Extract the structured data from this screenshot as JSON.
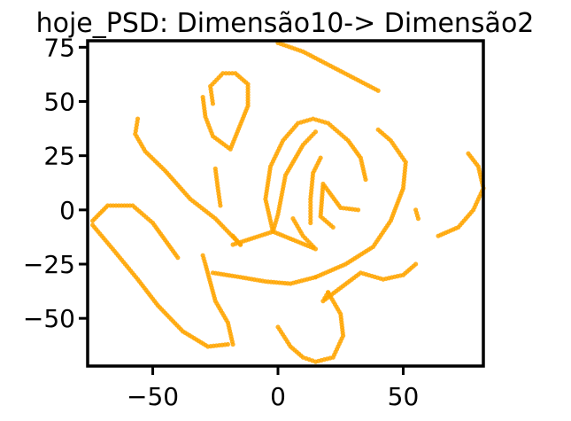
{
  "chart_data": {
    "type": "scatter",
    "title": "hoje_PSD: Dimensão10-> Dimensão2",
    "xlabel": "",
    "ylabel": "",
    "xlim": [
      -76,
      82
    ],
    "ylim": [
      -72,
      78
    ],
    "x_ticks": [
      {
        "value": -50,
        "label": "−50"
      },
      {
        "value": 0,
        "label": "0"
      },
      {
        "value": 50,
        "label": "50"
      }
    ],
    "y_ticks": [
      {
        "value": 75,
        "label": "75"
      },
      {
        "value": 50,
        "label": "50"
      },
      {
        "value": 25,
        "label": "25"
      },
      {
        "value": 0,
        "label": "0"
      },
      {
        "value": -25,
        "label": "−25"
      },
      {
        "value": -50,
        "label": "−50"
      }
    ],
    "grid": false,
    "marker_color": "#FFA500",
    "series": [
      {
        "points": [
          [
            0,
            77
          ],
          [
            10,
            73
          ],
          [
            20,
            67
          ],
          [
            30,
            61
          ],
          [
            40,
            55
          ],
          [
            -26,
            49
          ],
          [
            -27,
            57
          ],
          [
            -22,
            63
          ],
          [
            -17,
            63
          ],
          [
            -12,
            58
          ],
          [
            -12,
            48
          ],
          [
            -19,
            28
          ],
          [
            -26,
            34
          ],
          [
            -29,
            43
          ],
          [
            -30,
            52
          ],
          [
            -56,
            42
          ],
          [
            -57,
            35
          ],
          [
            -53,
            27
          ],
          [
            -45,
            18
          ],
          [
            -35,
            5
          ],
          [
            -25,
            -4
          ],
          [
            -15,
            -16
          ],
          [
            -25,
            19
          ],
          [
            -24,
            10
          ],
          [
            -23,
            2
          ],
          [
            -74,
            -5
          ],
          [
            -68,
            2
          ],
          [
            -58,
            2
          ],
          [
            -50,
            -6
          ],
          [
            -45,
            -14
          ],
          [
            -40,
            -22
          ],
          [
            -74,
            -7
          ],
          [
            -66,
            -18
          ],
          [
            -56,
            -32
          ],
          [
            -48,
            -44
          ],
          [
            -38,
            -56
          ],
          [
            -28,
            -63
          ],
          [
            -20,
            -62
          ],
          [
            -30,
            -21
          ],
          [
            -29,
            -25
          ],
          [
            -25,
            -42
          ],
          [
            -20,
            -52
          ],
          [
            -18,
            -62
          ],
          [
            -18,
            -16
          ],
          [
            -2,
            -10
          ],
          [
            -5,
            5
          ],
          [
            -3,
            20
          ],
          [
            2,
            32
          ],
          [
            8,
            40
          ],
          [
            14,
            42
          ],
          [
            20,
            40
          ],
          [
            28,
            32
          ],
          [
            33,
            24
          ],
          [
            35,
            14
          ],
          [
            6,
            -4
          ],
          [
            10,
            -12
          ],
          [
            15,
            -18
          ],
          [
            -2,
            -10
          ],
          [
            0,
            -2
          ],
          [
            3,
            16
          ],
          [
            10,
            30
          ],
          [
            15,
            36
          ],
          [
            13,
            -6
          ],
          [
            13,
            5
          ],
          [
            14,
            17
          ],
          [
            17,
            24
          ],
          [
            22,
            -8
          ],
          [
            17,
            -3
          ],
          [
            18,
            12
          ],
          [
            25,
            1
          ],
          [
            32,
            0
          ],
          [
            -26,
            -29
          ],
          [
            -15,
            -31
          ],
          [
            -5,
            -33
          ],
          [
            5,
            -34
          ],
          [
            15,
            -31
          ],
          [
            15,
            -31
          ],
          [
            27,
            -25
          ],
          [
            38,
            -17
          ],
          [
            45,
            -5
          ],
          [
            50,
            10
          ],
          [
            51,
            22
          ],
          [
            45,
            32
          ],
          [
            40,
            37
          ],
          [
            0,
            -54
          ],
          [
            5,
            -63
          ],
          [
            10,
            -68
          ],
          [
            15,
            -70
          ],
          [
            22,
            -68
          ],
          [
            26,
            -58
          ],
          [
            25,
            -48
          ],
          [
            20,
            -38
          ],
          [
            20,
            -38
          ],
          [
            18,
            -42
          ],
          [
            33,
            -29
          ],
          [
            42,
            -32
          ],
          [
            50,
            -30
          ],
          [
            55,
            -25
          ],
          [
            55,
            0
          ],
          [
            56,
            -4
          ],
          [
            -15,
            -16
          ],
          [
            -18,
            -12
          ],
          [
            64,
            -12
          ],
          [
            72,
            -8
          ],
          [
            78,
            0
          ],
          [
            82,
            10
          ],
          [
            80,
            20
          ],
          [
            76,
            26
          ]
        ]
      }
    ]
  }
}
